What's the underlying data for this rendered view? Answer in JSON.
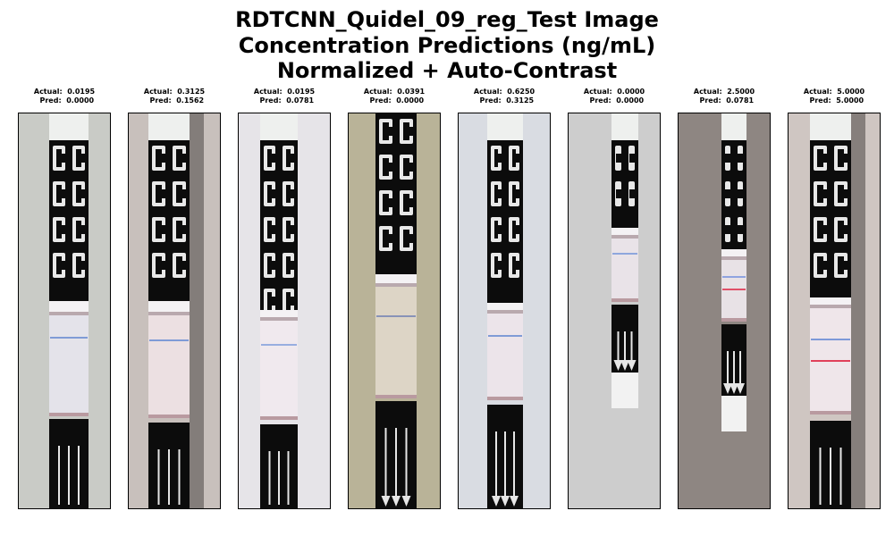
{
  "figure": {
    "title_lines": [
      "RDTCNN_Quidel_09_reg_Test Image",
      "Concentration Predictions (ng/mL)",
      "Normalized + Auto-Contrast"
    ]
  },
  "panels": [
    {
      "actual": "Actual:  0.0195",
      "pred": "Pred:  0.0000",
      "bg": "#c9cbc6",
      "strip": {
        "x": 34,
        "w": 44,
        "top_black_end": 210,
        "window_start": 222,
        "window_end": 338,
        "bottom_black_start": 342,
        "arrows": false,
        "lines": [
          {
            "y": 250,
            "color": "#7f9bd6"
          }
        ],
        "shade": "#e4e3ea",
        "text_top": true
      }
    },
    {
      "actual": "Actual:  0.3125",
      "pred": "Pred:  0.1562",
      "bg": "#c8c0bc",
      "strip": {
        "x": 22,
        "w": 46,
        "top_black_end": 210,
        "window_start": 222,
        "window_end": 340,
        "bottom_black_start": 346,
        "arrows": false,
        "lines": [
          {
            "y": 253,
            "color": "#7f9bd6"
          }
        ],
        "shade": "#ece0e2",
        "text_top": true,
        "shadow": true
      }
    },
    {
      "actual": "Actual:  0.0195",
      "pred": "Pred:  0.0781",
      "bg": "#e6e4e8",
      "strip": {
        "x": 24,
        "w": 42,
        "top_black_end": 220,
        "window_start": 228,
        "window_end": 342,
        "bottom_black_start": 348,
        "arrows": false,
        "lines": [
          {
            "y": 258,
            "color": "#98aee0"
          }
        ],
        "shade": "#f0e9ee",
        "text_top": true
      }
    },
    {
      "actual": "Actual:  0.0391",
      "pred": "Pred:  0.0000",
      "bg": "#b9b398",
      "strip": {
        "x": 30,
        "w": 46,
        "top_black_end": 180,
        "window_start": 190,
        "window_end": 318,
        "bottom_black_start": 322,
        "arrows": true,
        "lines": [
          {
            "y": 226,
            "color": "#8893b8"
          }
        ],
        "shade": "#ddd5c6",
        "text_top": false
      }
    },
    {
      "actual": "Actual:  0.6250",
      "pred": "Pred:  0.3125",
      "bg": "#d9dce2",
      "strip": {
        "x": 32,
        "w": 40,
        "top_black_end": 212,
        "window_start": 220,
        "window_end": 320,
        "bottom_black_start": 326,
        "arrows": true,
        "lines": [
          {
            "y": 248,
            "color": "#7f9bd6"
          }
        ],
        "shade": "#ece4ea",
        "text_top": true
      }
    },
    {
      "actual": "Actual:  0.0000",
      "pred": "Pred:  0.0000",
      "bg": "#cdcdcd",
      "strip": {
        "x": 48,
        "w": 30,
        "top_black_end": 128,
        "window_start": 136,
        "window_end": 210,
        "bottom_black_start": 214,
        "arrows": true,
        "lines": [
          {
            "y": 156,
            "color": "#8fa7dd"
          }
        ],
        "shade": "#e9e3e8",
        "text_top": true,
        "tail_end": 330
      }
    },
    {
      "actual": "Actual:  2.5000",
      "pred": "Pred:  0.0781",
      "bg": "#8e8682",
      "strip": {
        "x": 48,
        "w": 28,
        "top_black_end": 152,
        "window_start": 160,
        "window_end": 232,
        "bottom_black_start": 236,
        "arrows": true,
        "lines": [
          {
            "y": 182,
            "color": "#8fa3e0"
          },
          {
            "y": 196,
            "color": "#e05068"
          }
        ],
        "shade": "#e8e2e6",
        "text_top": true,
        "tail_end": 356
      }
    },
    {
      "actual": "Actual:  5.0000",
      "pred": "Pred:  5.0000",
      "bg": "#cfc6c2",
      "strip": {
        "x": 24,
        "w": 46,
        "top_black_end": 206,
        "window_start": 214,
        "window_end": 336,
        "bottom_black_start": 344,
        "arrows": false,
        "lines": [
          {
            "y": 252,
            "color": "#7d99d8"
          },
          {
            "y": 276,
            "color": "#e0405a"
          }
        ],
        "shade": "#efe6ea",
        "text_top": true,
        "shadow": true
      }
    }
  ]
}
